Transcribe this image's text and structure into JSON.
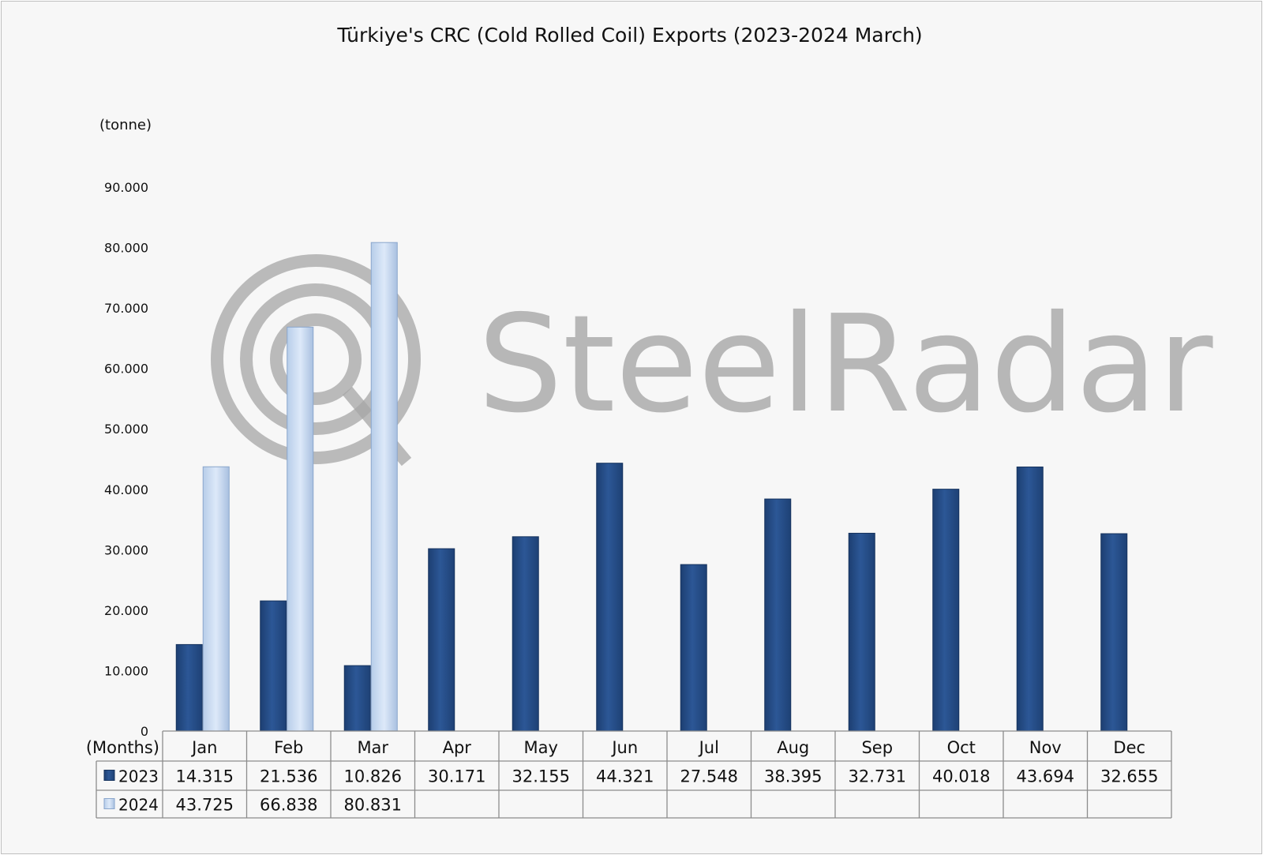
{
  "chart_data": {
    "type": "bar",
    "title": "Türkiye's CRC (Cold Rolled Coil) Exports (2023-2024 March)",
    "ylabel": "(tonne)",
    "xlabel": "(Months)",
    "ylim": [
      0,
      90000
    ],
    "y_ticks": [
      0,
      10000,
      20000,
      30000,
      40000,
      50000,
      60000,
      70000,
      80000,
      90000
    ],
    "y_tick_labels": [
      "0",
      "10.000",
      "20.000",
      "30.000",
      "40.000",
      "50.000",
      "60.000",
      "70.000",
      "80.000",
      "90.000"
    ],
    "categories": [
      "Jan",
      "Feb",
      "Mar",
      "Apr",
      "May",
      "Jun",
      "Jul",
      "Aug",
      "Sep",
      "Oct",
      "Nov",
      "Dec"
    ],
    "series": [
      {
        "name": "2023",
        "color": "#27508c",
        "values": [
          14315,
          21536,
          10826,
          30171,
          32155,
          44321,
          27548,
          38395,
          32731,
          40018,
          43694,
          32655
        ],
        "labels": [
          "14.315",
          "21.536",
          "10.826",
          "30.171",
          "32.155",
          "44.321",
          "27.548",
          "38.395",
          "32.731",
          "40.018",
          "43.694",
          "32.655"
        ]
      },
      {
        "name": "2024",
        "color": "#c9dcf4",
        "values": [
          43725,
          66838,
          80831,
          null,
          null,
          null,
          null,
          null,
          null,
          null,
          null,
          null
        ],
        "labels": [
          "43.725",
          "66.838",
          "80.831",
          "",
          "",
          "",
          "",
          "",
          "",
          "",
          "",
          ""
        ]
      }
    ],
    "grid": false,
    "legend": "data-table"
  },
  "watermark": {
    "text": "SteelRadar",
    "icon": "radar-logo-icon"
  }
}
